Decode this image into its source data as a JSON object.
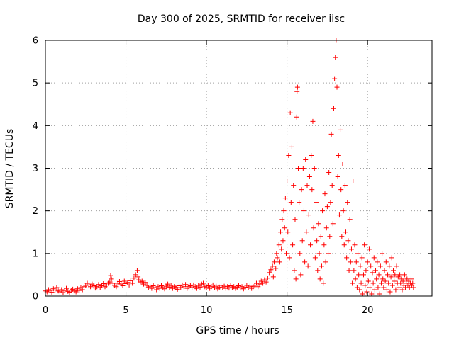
{
  "chart_data": {
    "type": "scatter",
    "title": "Day 300 of 2025, SRMTID for receiver iisc",
    "xlabel": "GPS time / hours",
    "ylabel": "SRMTID / TECUs",
    "xlim": [
      0,
      24
    ],
    "ylim": [
      0,
      6
    ],
    "xticks": [
      0,
      5,
      10,
      15,
      20
    ],
    "xtick_labels": [
      "0",
      "5",
      "10",
      "15",
      "20"
    ],
    "yticks": [
      0,
      1,
      2,
      3,
      4,
      5,
      6
    ],
    "ytick_labels": [
      "0",
      "1",
      "2",
      "3",
      "4",
      "5",
      "6"
    ],
    "grid": true,
    "marker": "+",
    "series": [
      {
        "name": "SRMTID",
        "color": "#ff0000",
        "points": [
          [
            0.0,
            0.12
          ],
          [
            0.1,
            0.1
          ],
          [
            0.2,
            0.15
          ],
          [
            0.3,
            0.13
          ],
          [
            0.4,
            0.09
          ],
          [
            0.5,
            0.17
          ],
          [
            0.6,
            0.14
          ],
          [
            0.7,
            0.2
          ],
          [
            0.8,
            0.12
          ],
          [
            0.9,
            0.1
          ],
          [
            1.0,
            0.15
          ],
          [
            1.1,
            0.08
          ],
          [
            1.2,
            0.13
          ],
          [
            1.3,
            0.18
          ],
          [
            1.4,
            0.11
          ],
          [
            1.5,
            0.09
          ],
          [
            1.6,
            0.14
          ],
          [
            1.7,
            0.16
          ],
          [
            1.8,
            0.12
          ],
          [
            1.9,
            0.1
          ],
          [
            2.0,
            0.17
          ],
          [
            2.1,
            0.13
          ],
          [
            2.2,
            0.2
          ],
          [
            2.3,
            0.15
          ],
          [
            2.4,
            0.22
          ],
          [
            2.5,
            0.25
          ],
          [
            2.6,
            0.3
          ],
          [
            2.7,
            0.26
          ],
          [
            2.8,
            0.22
          ],
          [
            2.9,
            0.28
          ],
          [
            3.0,
            0.24
          ],
          [
            3.1,
            0.19
          ],
          [
            3.2,
            0.22
          ],
          [
            3.3,
            0.27
          ],
          [
            3.4,
            0.2
          ],
          [
            3.5,
            0.24
          ],
          [
            3.6,
            0.29
          ],
          [
            3.7,
            0.22
          ],
          [
            3.8,
            0.26
          ],
          [
            3.9,
            0.3
          ],
          [
            4.0,
            0.33
          ],
          [
            4.05,
            0.48
          ],
          [
            4.1,
            0.4
          ],
          [
            4.2,
            0.3
          ],
          [
            4.3,
            0.25
          ],
          [
            4.4,
            0.22
          ],
          [
            4.5,
            0.3
          ],
          [
            4.6,
            0.34
          ],
          [
            4.7,
            0.28
          ],
          [
            4.8,
            0.24
          ],
          [
            4.9,
            0.35
          ],
          [
            5.0,
            0.29
          ],
          [
            5.1,
            0.32
          ],
          [
            5.2,
            0.26
          ],
          [
            5.3,
            0.36
          ],
          [
            5.4,
            0.3
          ],
          [
            5.5,
            0.42
          ],
          [
            5.6,
            0.5
          ],
          [
            5.7,
            0.6
          ],
          [
            5.75,
            0.45
          ],
          [
            5.8,
            0.38
          ],
          [
            5.9,
            0.33
          ],
          [
            6.0,
            0.35
          ],
          [
            6.1,
            0.28
          ],
          [
            6.2,
            0.32
          ],
          [
            6.3,
            0.25
          ],
          [
            6.4,
            0.2
          ],
          [
            6.5,
            0.22
          ],
          [
            6.6,
            0.18
          ],
          [
            6.7,
            0.24
          ],
          [
            6.8,
            0.2
          ],
          [
            6.9,
            0.15
          ],
          [
            7.0,
            0.22
          ],
          [
            7.1,
            0.18
          ],
          [
            7.2,
            0.24
          ],
          [
            7.3,
            0.2
          ],
          [
            7.4,
            0.17
          ],
          [
            7.5,
            0.23
          ],
          [
            7.6,
            0.28
          ],
          [
            7.7,
            0.21
          ],
          [
            7.8,
            0.25
          ],
          [
            7.9,
            0.18
          ],
          [
            8.0,
            0.22
          ],
          [
            8.1,
            0.2
          ],
          [
            8.2,
            0.16
          ],
          [
            8.3,
            0.24
          ],
          [
            8.4,
            0.2
          ],
          [
            8.5,
            0.26
          ],
          [
            8.6,
            0.22
          ],
          [
            8.7,
            0.27
          ],
          [
            8.8,
            0.18
          ],
          [
            8.9,
            0.22
          ],
          [
            9.0,
            0.24
          ],
          [
            9.1,
            0.2
          ],
          [
            9.2,
            0.26
          ],
          [
            9.3,
            0.22
          ],
          [
            9.4,
            0.18
          ],
          [
            9.5,
            0.25
          ],
          [
            9.6,
            0.21
          ],
          [
            9.7,
            0.28
          ],
          [
            9.8,
            0.3
          ],
          [
            9.9,
            0.22
          ],
          [
            10.0,
            0.2
          ],
          [
            10.1,
            0.24
          ],
          [
            10.2,
            0.18
          ],
          [
            10.3,
            0.22
          ],
          [
            10.4,
            0.26
          ],
          [
            10.5,
            0.2
          ],
          [
            10.6,
            0.23
          ],
          [
            10.7,
            0.17
          ],
          [
            10.8,
            0.21
          ],
          [
            10.9,
            0.25
          ],
          [
            11.0,
            0.2
          ],
          [
            11.1,
            0.23
          ],
          [
            11.2,
            0.18
          ],
          [
            11.3,
            0.22
          ],
          [
            11.4,
            0.19
          ],
          [
            11.5,
            0.24
          ],
          [
            11.6,
            0.2
          ],
          [
            11.7,
            0.22
          ],
          [
            11.8,
            0.18
          ],
          [
            11.9,
            0.21
          ],
          [
            12.0,
            0.24
          ],
          [
            12.1,
            0.19
          ],
          [
            12.2,
            0.22
          ],
          [
            12.3,
            0.17
          ],
          [
            12.4,
            0.21
          ],
          [
            12.5,
            0.25
          ],
          [
            12.6,
            0.2
          ],
          [
            12.7,
            0.23
          ],
          [
            12.8,
            0.18
          ],
          [
            12.9,
            0.22
          ],
          [
            13.0,
            0.25
          ],
          [
            13.1,
            0.3
          ],
          [
            13.2,
            0.22
          ],
          [
            13.3,
            0.28
          ],
          [
            13.4,
            0.35
          ],
          [
            13.5,
            0.3
          ],
          [
            13.6,
            0.38
          ],
          [
            13.7,
            0.33
          ],
          [
            13.8,
            0.42
          ],
          [
            13.9,
            0.55
          ],
          [
            14.0,
            0.62
          ],
          [
            14.1,
            0.7
          ],
          [
            14.15,
            0.45
          ],
          [
            14.2,
            0.8
          ],
          [
            14.3,
            0.65
          ],
          [
            14.35,
            1.0
          ],
          [
            14.4,
            0.9
          ],
          [
            14.5,
            1.2
          ],
          [
            14.55,
            0.8
          ],
          [
            14.6,
            1.5
          ],
          [
            14.65,
            1.1
          ],
          [
            14.7,
            1.8
          ],
          [
            14.75,
            1.3
          ],
          [
            14.8,
            2.0
          ],
          [
            14.85,
            1.6
          ],
          [
            14.9,
            2.3
          ],
          [
            14.95,
            1.0
          ],
          [
            15.0,
            2.7
          ],
          [
            15.05,
            1.5
          ],
          [
            15.1,
            3.3
          ],
          [
            15.15,
            0.9
          ],
          [
            15.2,
            4.3
          ],
          [
            15.25,
            2.2
          ],
          [
            15.3,
            3.5
          ],
          [
            15.35,
            1.2
          ],
          [
            15.4,
            2.6
          ],
          [
            15.45,
            0.6
          ],
          [
            15.5,
            1.8
          ],
          [
            15.55,
            0.4
          ],
          [
            15.6,
            4.2
          ],
          [
            15.62,
            4.8
          ],
          [
            15.65,
            4.9
          ],
          [
            15.7,
            3.0
          ],
          [
            15.75,
            2.2
          ],
          [
            15.8,
            1.0
          ],
          [
            15.85,
            0.5
          ],
          [
            15.9,
            2.5
          ],
          [
            15.95,
            1.3
          ],
          [
            16.0,
            3.0
          ],
          [
            16.05,
            2.0
          ],
          [
            16.1,
            0.8
          ],
          [
            16.15,
            3.2
          ],
          [
            16.2,
            1.5
          ],
          [
            16.25,
            2.6
          ],
          [
            16.3,
            0.7
          ],
          [
            16.35,
            1.9
          ],
          [
            16.4,
            2.8
          ],
          [
            16.45,
            1.2
          ],
          [
            16.5,
            3.3
          ],
          [
            16.55,
            2.5
          ],
          [
            16.6,
            4.1
          ],
          [
            16.65,
            1.6
          ],
          [
            16.7,
            3.0
          ],
          [
            16.75,
            0.9
          ],
          [
            16.8,
            2.2
          ],
          [
            16.85,
            1.3
          ],
          [
            16.9,
            0.6
          ],
          [
            16.95,
            1.7
          ],
          [
            17.0,
            1.0
          ],
          [
            17.05,
            0.4
          ],
          [
            17.1,
            1.4
          ],
          [
            17.15,
            0.7
          ],
          [
            17.2,
            2.0
          ],
          [
            17.25,
            0.3
          ],
          [
            17.3,
            1.2
          ],
          [
            17.35,
            2.4
          ],
          [
            17.4,
            0.8
          ],
          [
            17.45,
            1.6
          ],
          [
            17.5,
            2.1
          ],
          [
            17.55,
            1.0
          ],
          [
            17.6,
            2.9
          ],
          [
            17.65,
            1.4
          ],
          [
            17.7,
            2.2
          ],
          [
            17.75,
            3.8
          ],
          [
            17.8,
            2.6
          ],
          [
            17.85,
            1.7
          ],
          [
            17.9,
            4.4
          ],
          [
            17.95,
            5.1
          ],
          [
            18.0,
            5.6
          ],
          [
            18.05,
            6.0
          ],
          [
            18.1,
            4.9
          ],
          [
            18.15,
            2.8
          ],
          [
            18.2,
            3.3
          ],
          [
            18.25,
            1.9
          ],
          [
            18.3,
            3.9
          ],
          [
            18.35,
            2.5
          ],
          [
            18.4,
            1.4
          ],
          [
            18.45,
            3.1
          ],
          [
            18.5,
            2.0
          ],
          [
            18.55,
            1.2
          ],
          [
            18.6,
            2.6
          ],
          [
            18.65,
            1.5
          ],
          [
            18.7,
            0.9
          ],
          [
            18.75,
            2.2
          ],
          [
            18.8,
            1.3
          ],
          [
            18.85,
            0.6
          ],
          [
            18.9,
            1.8
          ],
          [
            18.95,
            0.8
          ],
          [
            19.0,
            1.1
          ],
          [
            19.05,
            0.3
          ],
          [
            19.1,
            2.7
          ],
          [
            19.15,
            0.6
          ],
          [
            19.2,
            1.2
          ],
          [
            19.25,
            0.4
          ],
          [
            19.3,
            0.8
          ],
          [
            19.35,
            0.2
          ],
          [
            19.4,
            1.0
          ],
          [
            19.45,
            0.5
          ],
          [
            19.5,
            0.15
          ],
          [
            19.55,
            0.7
          ],
          [
            19.6,
            0.3
          ],
          [
            19.65,
            0.9
          ],
          [
            19.7,
            0.05
          ],
          [
            19.75,
            0.5
          ],
          [
            19.8,
            1.2
          ],
          [
            19.85,
            0.25
          ],
          [
            19.9,
            0.6
          ],
          [
            19.95,
            0.1
          ],
          [
            20.0,
            0.8
          ],
          [
            20.05,
            0.35
          ],
          [
            20.1,
            1.1
          ],
          [
            20.15,
            0.2
          ],
          [
            20.2,
            0.7
          ],
          [
            20.25,
            0.05
          ],
          [
            20.3,
            0.55
          ],
          [
            20.35,
            0.3
          ],
          [
            20.4,
            0.9
          ],
          [
            20.45,
            0.15
          ],
          [
            20.5,
            0.6
          ],
          [
            20.55,
            0.4
          ],
          [
            20.6,
            0.8
          ],
          [
            20.65,
            0.2
          ],
          [
            20.7,
            0.5
          ],
          [
            20.75,
            0.05
          ],
          [
            20.8,
            0.7
          ],
          [
            20.85,
            0.3
          ],
          [
            20.9,
            1.0
          ],
          [
            20.95,
            0.4
          ],
          [
            21.0,
            0.2
          ],
          [
            21.05,
            0.6
          ],
          [
            21.1,
            0.35
          ],
          [
            21.15,
            0.8
          ],
          [
            21.2,
            0.15
          ],
          [
            21.25,
            0.5
          ],
          [
            21.3,
            0.3
          ],
          [
            21.35,
            0.7
          ],
          [
            21.4,
            0.1
          ],
          [
            21.45,
            0.45
          ],
          [
            21.5,
            0.9
          ],
          [
            21.55,
            0.25
          ],
          [
            21.6,
            0.6
          ],
          [
            21.65,
            0.35
          ],
          [
            21.7,
            0.5
          ],
          [
            21.75,
            0.15
          ],
          [
            21.8,
            0.7
          ],
          [
            21.85,
            0.3
          ],
          [
            21.9,
            0.45
          ],
          [
            21.95,
            0.2
          ],
          [
            22.0,
            0.5
          ],
          [
            22.05,
            0.3
          ],
          [
            22.1,
            0.4
          ],
          [
            22.15,
            0.15
          ],
          [
            22.2,
            0.35
          ],
          [
            22.25,
            0.25
          ],
          [
            22.3,
            0.5
          ],
          [
            22.35,
            0.2
          ],
          [
            22.4,
            0.3
          ],
          [
            22.45,
            0.4
          ],
          [
            22.5,
            0.25
          ],
          [
            22.55,
            0.35
          ],
          [
            22.6,
            0.2
          ],
          [
            22.65,
            0.3
          ],
          [
            22.7,
            0.4
          ],
          [
            22.75,
            0.25
          ],
          [
            22.8,
            0.3
          ],
          [
            22.85,
            0.2
          ]
        ]
      }
    ]
  }
}
